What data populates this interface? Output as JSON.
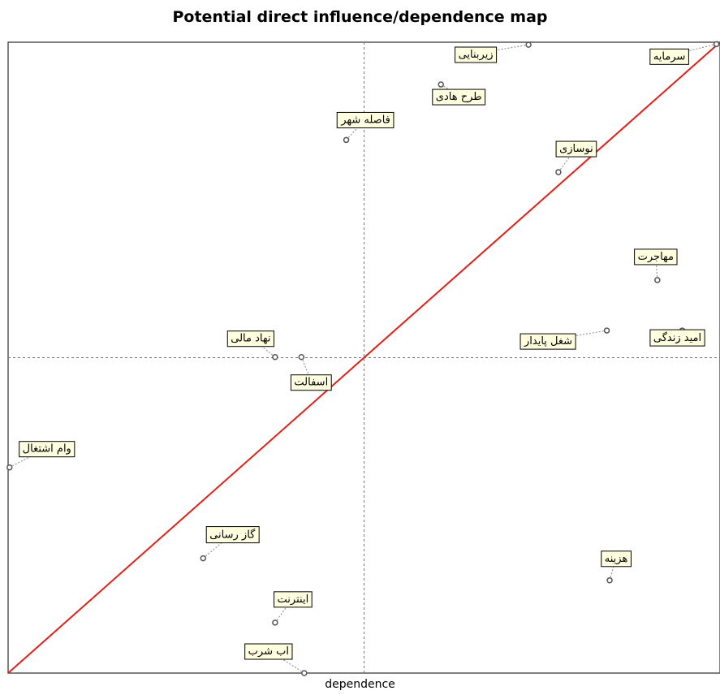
{
  "chart_data": {
    "type": "scatter",
    "title": "Potential direct influence/dependence map",
    "xlabel": "dependence",
    "ylabel": "",
    "xlim": [
      0,
      100
    ],
    "ylim": [
      0,
      100
    ],
    "quadrant_lines": {
      "x": 50,
      "y": 50
    },
    "diagonal": {
      "from": [
        0,
        0
      ],
      "to": [
        100,
        100
      ],
      "color": "#e0201a"
    },
    "grid": false,
    "colors": {
      "label_fill": "#ffffe0",
      "point": "#555555",
      "axis": "#555555"
    },
    "points": [
      {
        "label": "زیربنایی",
        "x": 73.1,
        "y": 99.6
      },
      {
        "label": "سرمایه",
        "x": 99.5,
        "y": 99.7
      },
      {
        "label": "طرح هادی",
        "x": 60.8,
        "y": 93.3
      },
      {
        "label": "فاصله شهر",
        "x": 47.5,
        "y": 84.5
      },
      {
        "label": "نوسازی",
        "x": 77.3,
        "y": 79.4
      },
      {
        "label": "مهاجرت",
        "x": 91.2,
        "y": 62.3
      },
      {
        "label": "امید زندگی",
        "x": 94.7,
        "y": 54.3
      },
      {
        "label": "شغل پایدار",
        "x": 84.1,
        "y": 54.3
      },
      {
        "label": "نهاد مالی",
        "x": 37.5,
        "y": 50.1
      },
      {
        "label": "اسفالت",
        "x": 41.2,
        "y": 50.1
      },
      {
        "label": "وام اشتغال",
        "x": 0.2,
        "y": 32.6
      },
      {
        "label": "گاز رسانی",
        "x": 27.4,
        "y": 18.2
      },
      {
        "label": "هزینه",
        "x": 84.5,
        "y": 14.7
      },
      {
        "label": "اینترنت",
        "x": 37.5,
        "y": 8.0
      },
      {
        "label": "اب شرب",
        "x": 41.6,
        "y": 0.0
      }
    ]
  }
}
